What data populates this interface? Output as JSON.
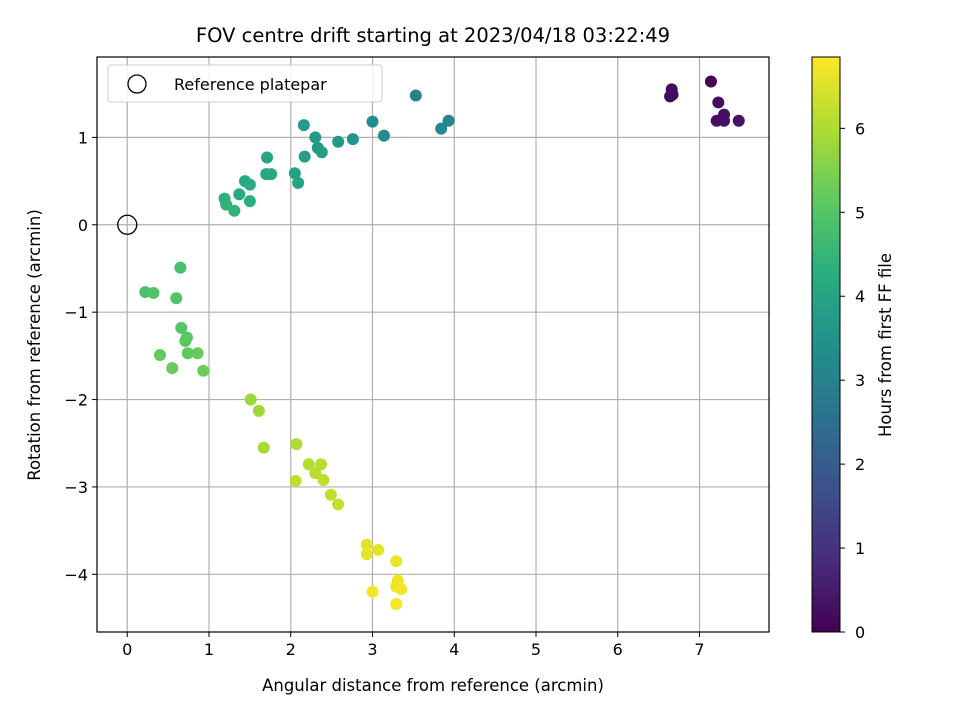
{
  "chart_data": {
    "type": "scatter",
    "title": "FOV centre drift starting at 2023/04/18 03:22:49",
    "xlabel": "Angular distance from reference (arcmin)",
    "ylabel": "Rotation from reference (arcmin)",
    "xlim": [
      -0.37,
      7.85
    ],
    "ylim": [
      -4.66,
      1.92
    ],
    "xticks": [
      0,
      1,
      2,
      3,
      4,
      5,
      6,
      7
    ],
    "yticks": [
      -4,
      -3,
      -2,
      -1,
      0,
      1
    ],
    "grid": true,
    "legend": {
      "placement": "upper-left",
      "entries": [
        "Reference platepar"
      ]
    },
    "reference": {
      "x": 0,
      "y": 0,
      "label": "Reference platepar"
    },
    "colorbar": {
      "label": "Hours from first FF file",
      "range": [
        0,
        6.85
      ],
      "ticks": [
        0,
        1,
        2,
        3,
        4,
        5,
        6
      ],
      "colormap": "viridis"
    },
    "points": [
      {
        "x": 7.14,
        "y": 1.64,
        "c": 0.05
      },
      {
        "x": 6.66,
        "y": 1.55,
        "c": 0.15
      },
      {
        "x": 6.64,
        "y": 1.47,
        "c": 0.2
      },
      {
        "x": 6.67,
        "y": 1.49,
        "c": 0.22
      },
      {
        "x": 7.23,
        "y": 1.4,
        "c": 0.25
      },
      {
        "x": 7.3,
        "y": 1.26,
        "c": 0.28
      },
      {
        "x": 7.21,
        "y": 1.19,
        "c": 0.3
      },
      {
        "x": 7.3,
        "y": 1.19,
        "c": 0.32
      },
      {
        "x": 7.48,
        "y": 1.19,
        "c": 0.35
      },
      {
        "x": 3.53,
        "y": 1.48,
        "c": 3.05
      },
      {
        "x": 3.93,
        "y": 1.19,
        "c": 3.15
      },
      {
        "x": 3.84,
        "y": 1.1,
        "c": 3.2
      },
      {
        "x": 3.0,
        "y": 1.18,
        "c": 3.3
      },
      {
        "x": 3.14,
        "y": 1.02,
        "c": 3.35
      },
      {
        "x": 2.76,
        "y": 0.98,
        "c": 3.5
      },
      {
        "x": 2.58,
        "y": 0.95,
        "c": 3.6
      },
      {
        "x": 2.3,
        "y": 1.0,
        "c": 3.65
      },
      {
        "x": 2.33,
        "y": 0.88,
        "c": 3.7
      },
      {
        "x": 2.38,
        "y": 0.83,
        "c": 3.75
      },
      {
        "x": 2.16,
        "y": 1.14,
        "c": 3.75
      },
      {
        "x": 2.17,
        "y": 0.78,
        "c": 3.85
      },
      {
        "x": 2.05,
        "y": 0.59,
        "c": 3.9
      },
      {
        "x": 2.09,
        "y": 0.48,
        "c": 3.95
      },
      {
        "x": 1.71,
        "y": 0.77,
        "c": 4.0
      },
      {
        "x": 1.7,
        "y": 0.58,
        "c": 4.05
      },
      {
        "x": 1.76,
        "y": 0.58,
        "c": 4.1
      },
      {
        "x": 1.44,
        "y": 0.5,
        "c": 4.15
      },
      {
        "x": 1.5,
        "y": 0.46,
        "c": 4.2
      },
      {
        "x": 1.37,
        "y": 0.35,
        "c": 4.25
      },
      {
        "x": 1.5,
        "y": 0.27,
        "c": 4.3
      },
      {
        "x": 1.19,
        "y": 0.3,
        "c": 4.35
      },
      {
        "x": 1.21,
        "y": 0.23,
        "c": 4.4
      },
      {
        "x": 1.31,
        "y": 0.16,
        "c": 4.45
      },
      {
        "x": 0.65,
        "y": -0.49,
        "c": 4.8
      },
      {
        "x": 0.22,
        "y": -0.77,
        "c": 4.85
      },
      {
        "x": 0.32,
        "y": -0.78,
        "c": 4.9
      },
      {
        "x": 0.6,
        "y": -0.84,
        "c": 4.95
      },
      {
        "x": 0.66,
        "y": -1.18,
        "c": 5.0
      },
      {
        "x": 0.73,
        "y": -1.29,
        "c": 5.05
      },
      {
        "x": 0.71,
        "y": -1.33,
        "c": 5.1
      },
      {
        "x": 0.74,
        "y": -1.47,
        "c": 5.15
      },
      {
        "x": 0.86,
        "y": -1.47,
        "c": 5.2
      },
      {
        "x": 0.4,
        "y": -1.49,
        "c": 5.2
      },
      {
        "x": 0.55,
        "y": -1.64,
        "c": 5.25
      },
      {
        "x": 0.93,
        "y": -1.67,
        "c": 5.3
      },
      {
        "x": 1.51,
        "y": -2.0,
        "c": 5.8
      },
      {
        "x": 1.61,
        "y": -2.13,
        "c": 5.85
      },
      {
        "x": 1.67,
        "y": -2.55,
        "c": 5.9
      },
      {
        "x": 2.07,
        "y": -2.51,
        "c": 6.0
      },
      {
        "x": 2.22,
        "y": -2.74,
        "c": 6.05
      },
      {
        "x": 2.37,
        "y": -2.74,
        "c": 6.1
      },
      {
        "x": 2.3,
        "y": -2.84,
        "c": 6.1
      },
      {
        "x": 2.4,
        "y": -2.92,
        "c": 6.15
      },
      {
        "x": 2.06,
        "y": -2.93,
        "c": 6.15
      },
      {
        "x": 2.49,
        "y": -3.09,
        "c": 6.2
      },
      {
        "x": 2.58,
        "y": -3.2,
        "c": 6.25
      },
      {
        "x": 2.93,
        "y": -3.66,
        "c": 6.55
      },
      {
        "x": 3.07,
        "y": -3.72,
        "c": 6.6
      },
      {
        "x": 2.93,
        "y": -3.77,
        "c": 6.6
      },
      {
        "x": 3.29,
        "y": -3.85,
        "c": 6.65
      },
      {
        "x": 3.31,
        "y": -4.07,
        "c": 6.7
      },
      {
        "x": 3.29,
        "y": -4.14,
        "c": 6.7
      },
      {
        "x": 3.35,
        "y": -4.17,
        "c": 6.75
      },
      {
        "x": 3.0,
        "y": -4.2,
        "c": 6.75
      },
      {
        "x": 3.29,
        "y": -4.34,
        "c": 6.8
      }
    ]
  }
}
